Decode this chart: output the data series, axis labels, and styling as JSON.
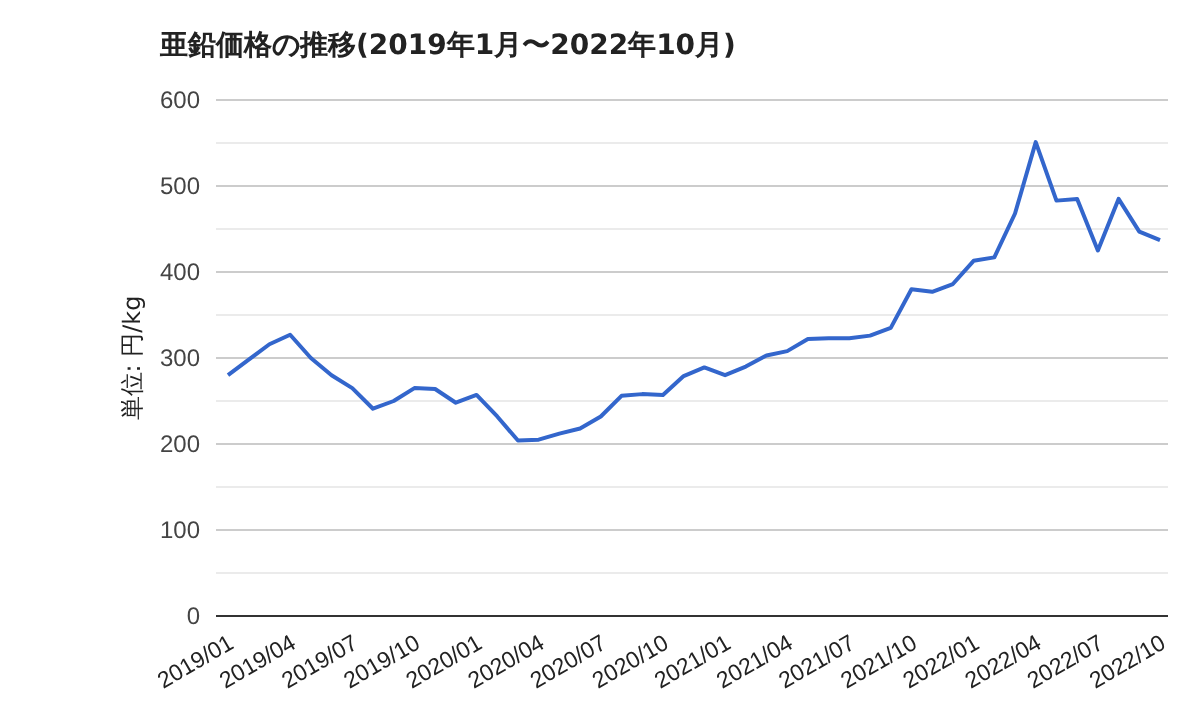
{
  "chart_data": {
    "type": "line",
    "title": "亜鉛価格の推移(2019年1月〜2022年10月)",
    "ylabel": "単位: 円/kg",
    "categories": [
      "2019/01",
      null,
      null,
      "2019/04",
      null,
      null,
      "2019/07",
      null,
      null,
      "2019/10",
      null,
      null,
      "2020/01",
      null,
      null,
      "2020/04",
      null,
      null,
      "2020/07",
      null,
      null,
      "2020/10",
      null,
      null,
      "2021/01",
      null,
      null,
      "2021/04",
      null,
      null,
      "2021/07",
      null,
      null,
      "2021/10",
      null,
      null,
      "2022/01",
      null,
      null,
      "2022/04",
      null,
      null,
      "2022/07",
      null,
      null,
      "2022/10"
    ],
    "series": [
      {
        "color": "#3366cc",
        "values": [
          280,
          298,
          316,
          327,
          300,
          280,
          265,
          241,
          250,
          265,
          264,
          248,
          257,
          232,
          204,
          205,
          212,
          218,
          232,
          256,
          258,
          257,
          279,
          289,
          280,
          290,
          303,
          308,
          322,
          323,
          323,
          326,
          335,
          380,
          377,
          386,
          413,
          417,
          468,
          551,
          483,
          485,
          425,
          485,
          447,
          437
        ]
      }
    ],
    "ylim": [
      0,
      600
    ],
    "yticks": [
      0,
      {
        "value": 50,
        "label": null
      },
      100,
      {
        "value": 150,
        "label": null
      },
      200,
      {
        "value": 250,
        "label": null
      },
      300,
      {
        "value": 350,
        "label": null
      },
      400,
      {
        "value": 450,
        "label": null
      },
      500,
      {
        "value": 550,
        "label": null
      },
      600
    ],
    "grid": true,
    "marker": "none",
    "line_style": "solid"
  }
}
